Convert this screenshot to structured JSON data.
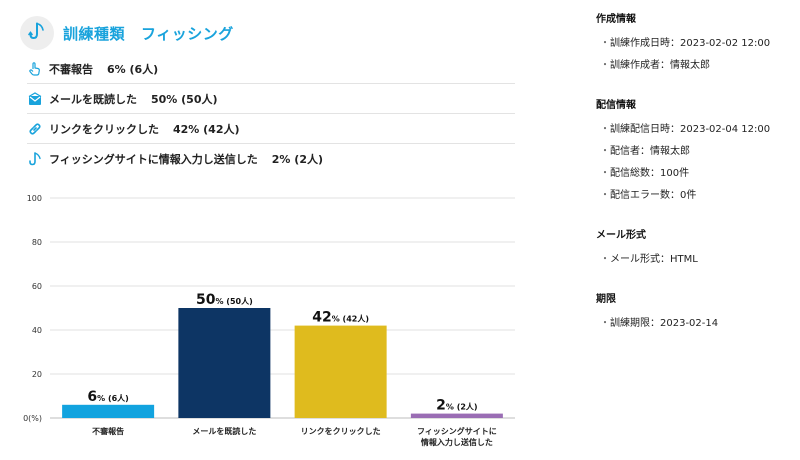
{
  "header": {
    "label": "訓練種類",
    "value": "フィッシング"
  },
  "stats": [
    {
      "label": "不審報告",
      "value": "6% (6人)"
    },
    {
      "label": "メールを既読した",
      "value": "50% (50人)"
    },
    {
      "label": "リンクをクリックした",
      "value": "42% (42人)"
    },
    {
      "label": "フィッシングサイトに情報入力し送信した",
      "value": "2% (2人)"
    }
  ],
  "colors": {
    "accent": "#19a3dc",
    "report": "#12a3df",
    "read": "#0d3564",
    "click": "#dfbb1e",
    "submit": "#9a6db4"
  },
  "chart_data": {
    "type": "bar",
    "categories": [
      "不審報告",
      "メールを既読した",
      "リンクをクリックした",
      "フィッシングサイトに\n情報入力し送信した"
    ],
    "values": [
      6,
      50,
      42,
      2
    ],
    "labels_pct": [
      "6",
      "50",
      "42",
      "2"
    ],
    "labels_count": [
      "% (6人)",
      "% (50人)",
      "% (42人)",
      "% (2人)"
    ],
    "colors": [
      "#12a3df",
      "#0d3564",
      "#dfbb1e",
      "#9a6db4"
    ],
    "yticks": [
      "0(%)",
      "20",
      "40",
      "60",
      "80",
      "100"
    ],
    "ylim": [
      0,
      100
    ],
    "grid": true
  },
  "panel": {
    "creation": {
      "title": "作成情報",
      "items": [
        "訓練作成日時：2023-02-02 12:00",
        "訓練作成者：情報太郎"
      ]
    },
    "delivery": {
      "title": "配信情報",
      "items": [
        "訓練配信日時：2023-02-04 12:00",
        "配信者：情報太郎",
        "配信総数：100件",
        "配信エラー数：0件"
      ]
    },
    "format": {
      "title": "メール形式",
      "items": [
        "メール形式：HTML"
      ]
    },
    "deadline": {
      "title": "期限",
      "items": [
        "訓練期限：2023-02-14"
      ]
    },
    "bullet": "・"
  }
}
